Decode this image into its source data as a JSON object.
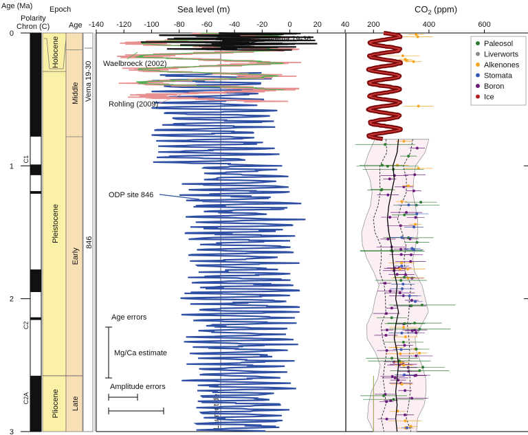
{
  "chart_data": [
    {
      "type": "table",
      "panel": "stratigraphy",
      "labels": {
        "age_axis": "Age (Ma)",
        "polarity": "Polarity",
        "chron": "Chron (C)",
        "epoch": "Epoch",
        "age": "Age"
      },
      "age_ticks": [
        "0",
        "1",
        "2",
        "3"
      ],
      "age_range": [
        0,
        3
      ],
      "chrons": [
        "C1",
        "C2",
        "C2A"
      ],
      "epochs": [
        {
          "name": "Holocene",
          "start": 0.0,
          "end": 0.0117
        },
        {
          "name": "Pleistocene",
          "start": 0.0117,
          "end": 2.58
        },
        {
          "name": "Pliocene",
          "start": 2.58,
          "end": 3.0
        }
      ],
      "ages": [
        {
          "name": "Middle",
          "start": 0.126,
          "end": 0.781
        },
        {
          "name": "Early",
          "start": 0.781,
          "end": 2.58
        },
        {
          "name": "Late",
          "start": 2.58,
          "end": 3.0
        }
      ],
      "polarity_normal_intervals": [
        [
          0.0,
          0.78
        ],
        [
          0.99,
          1.07
        ],
        [
          1.19,
          1.21
        ],
        [
          1.78,
          1.95
        ],
        [
          2.14,
          2.16
        ],
        [
          2.58,
          3.0
        ]
      ],
      "core_labels": [
        "Vema 19-30",
        "846"
      ]
    },
    {
      "type": "line",
      "title": "Sea level (m)",
      "xlabel": "Sea level (m)",
      "ylabel": "Age (Ma)",
      "xlim": [
        -140,
        40
      ],
      "ylim": [
        0,
        3
      ],
      "xticks": [
        -140,
        -120,
        -100,
        -80,
        -60,
        -40,
        -20,
        0,
        20,
        40
      ],
      "reference_line": {
        "label": "Laurentide",
        "x": -50
      },
      "series": [
        {
          "name": "ODP site 846",
          "color": "#2e4fa3",
          "age_range": [
            0.3,
            3.0
          ]
        },
        {
          "name": "Rohling (2009)",
          "color": "#e88f8f",
          "age_range": [
            0.0,
            0.52
          ]
        },
        {
          "name": "Waelbroeck (2002)",
          "color": "#4caf50",
          "age_range": [
            0.0,
            0.43
          ]
        },
        {
          "name": "Vema 19-36",
          "color": "#111111",
          "age_range": [
            0.0,
            0.13
          ]
        }
      ],
      "annotations": [
        "Vema 19-36",
        "Waelbroeck (2002)",
        "Rohling (2009)",
        "ODP site 846",
        "Laurentide",
        "Age errors",
        "Mg/Ca estimate",
        "Amplitude errors"
      ]
    },
    {
      "type": "scatter",
      "title": "CO2 (ppm)",
      "title_main": "CO",
      "title_sub": "2",
      "title_unit": " (ppm)",
      "xlim": [
        0,
        700
      ],
      "ylim": [
        0,
        3
      ],
      "xticks": [
        200,
        400,
        600
      ],
      "legend_position": "top-right",
      "series": [
        {
          "name": "Paleosol",
          "color": "#2e7d32"
        },
        {
          "name": "Liverworts",
          "color": "#888888"
        },
        {
          "name": "Alkenones",
          "color": "#f5a623"
        },
        {
          "name": "Stomata",
          "color": "#3b5bb5"
        },
        {
          "name": "Boron",
          "color": "#6a1b7a"
        },
        {
          "name": "Ice",
          "color": "#b22222"
        }
      ],
      "ice_core_range": {
        "age": [
          0.0,
          0.8
        ],
        "ppm": [
          180,
          300
        ]
      },
      "median_ppm": [
        [
          0.8,
          290
        ],
        [
          0.9,
          285
        ],
        [
          1.0,
          270
        ],
        [
          1.1,
          275
        ],
        [
          1.2,
          265
        ],
        [
          1.3,
          255
        ],
        [
          1.4,
          250
        ],
        [
          1.5,
          255
        ],
        [
          1.6,
          265
        ],
        [
          1.7,
          270
        ],
        [
          1.8,
          275
        ],
        [
          1.9,
          285
        ],
        [
          2.0,
          280
        ],
        [
          2.1,
          290
        ],
        [
          2.2,
          280
        ],
        [
          2.3,
          275
        ],
        [
          2.4,
          285
        ],
        [
          2.5,
          290
        ],
        [
          2.6,
          285
        ],
        [
          2.7,
          280
        ],
        [
          2.8,
          285
        ],
        [
          2.9,
          280
        ],
        [
          3.0,
          285
        ]
      ]
    }
  ]
}
